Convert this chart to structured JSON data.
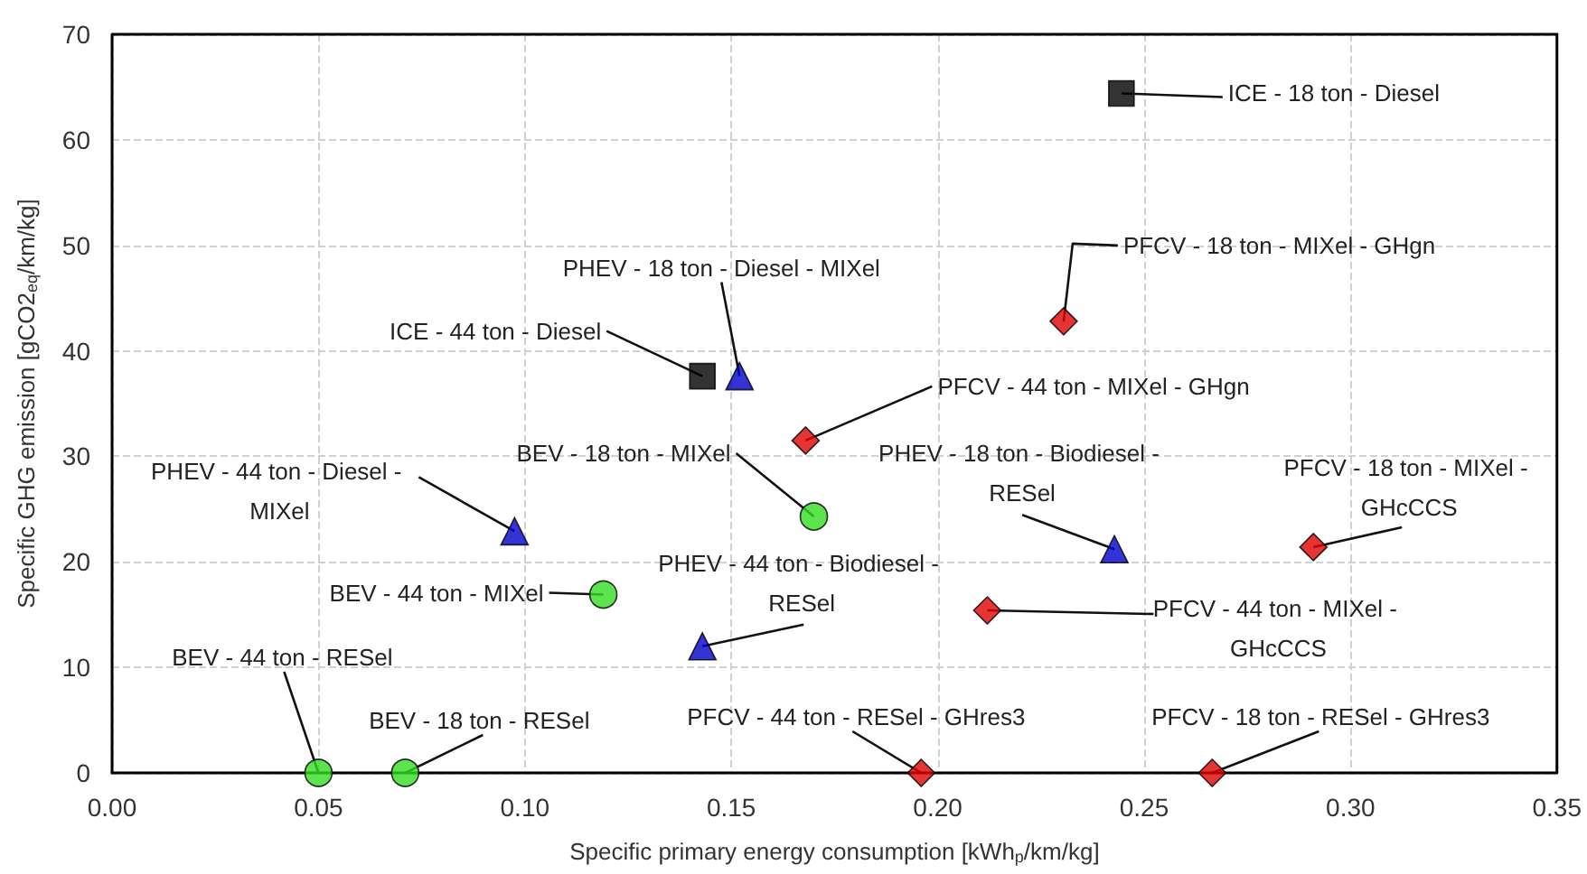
{
  "chart_data": {
    "type": "scatter",
    "xlabel": "Specific primary energy consumption [kWh$_{p}$/km/kg]",
    "ylabel": "Specific GHG emission [gCO2$_{eq}$/km/kg]",
    "xlim": [
      0,
      0.35
    ],
    "xticks": [
      {
        "value": 0,
        "label": "0.00"
      },
      {
        "value": 0.05,
        "label": "0.05"
      },
      {
        "value": 0.1,
        "label": "0.10"
      },
      {
        "value": 0.15,
        "label": "0.15"
      },
      {
        "value": 0.2,
        "label": "0.20"
      },
      {
        "value": 0.25,
        "label": "0.25"
      },
      {
        "value": 0.3,
        "label": "0.30"
      },
      {
        "value": 0.35,
        "label": "0.35"
      }
    ],
    "ylim": [
      0,
      70
    ],
    "yticks": [
      0,
      10,
      20,
      30,
      40,
      50,
      60,
      70
    ],
    "grid": true,
    "series": [
      {
        "color": "#000000",
        "marker": "square",
        "x": [
          0.2445,
          0.143
        ],
        "values": [
          64.4,
          37.6
        ]
      },
      {
        "color": "#0000cc",
        "marker": "triangle",
        "x": [
          0.152,
          0.0975,
          0.143,
          0.2428
        ],
        "values": [
          37.6,
          22.9,
          12.0,
          21.2
        ]
      },
      {
        "color": "#33dd22",
        "marker": "circle",
        "x": [
          0.17,
          0.119,
          0.05,
          0.071
        ],
        "values": [
          24.3,
          16.9,
          0,
          0
        ]
      },
      {
        "color": "#e00000",
        "marker": "diamond",
        "x": [
          0.2305,
          0.168,
          0.291,
          0.212,
          0.196,
          0.2665
        ],
        "values": [
          42.8,
          31.5,
          21.4,
          15.4,
          0,
          0
        ]
      }
    ],
    "annotations": [
      {
        "text": "ICE - 18 ton - Diesel",
        "x": 0.2445,
        "y": 64.4
      },
      {
        "text": "ICE - 44 ton - Diesel",
        "x": 0.143,
        "y": 37.6
      },
      {
        "text": "PHEV - 18 ton - Diesel - MIXel",
        "x": 0.152,
        "y": 37.6
      },
      {
        "text": "PFCV - 18 ton - MIXel - GHgn",
        "x": 0.2305,
        "y": 42.8
      },
      {
        "text": "PFCV - 44 ton - MIXel - GHgn",
        "x": 0.168,
        "y": 31.5
      },
      {
        "text": "BEV - 18 ton - MIXel",
        "x": 0.17,
        "y": 24.3
      },
      {
        "text": "PHEV - 44 ton - Diesel - MIXel",
        "x": 0.0975,
        "y": 22.9
      },
      {
        "text": "BEV - 44 ton - MIXel",
        "x": 0.119,
        "y": 16.9
      },
      {
        "text": "PHEV - 44 ton - Biodiesel - RESel",
        "x": 0.143,
        "y": 12.0
      },
      {
        "text": "BEV - 44 ton - RESel",
        "x": 0.05,
        "y": 0
      },
      {
        "text": "BEV - 18 ton - RESel",
        "x": 0.071,
        "y": 0
      },
      {
        "text": "PHEV - 18 ton - Biodiesel - RESel",
        "x": 0.2428,
        "y": 21.2
      },
      {
        "text": "PFCV - 18 ton - MIXel - GHcCCS",
        "x": 0.291,
        "y": 21.4
      },
      {
        "text": "PFCV - 44 ton - MIXel - GHcCCS",
        "x": 0.212,
        "y": 15.4
      },
      {
        "text": "PFCV - 44 ton - RESel - GHres3",
        "x": 0.196,
        "y": 0
      },
      {
        "text": "PFCV - 18 ton - RESel - GHres3",
        "x": 0.2665,
        "y": 0
      }
    ]
  }
}
